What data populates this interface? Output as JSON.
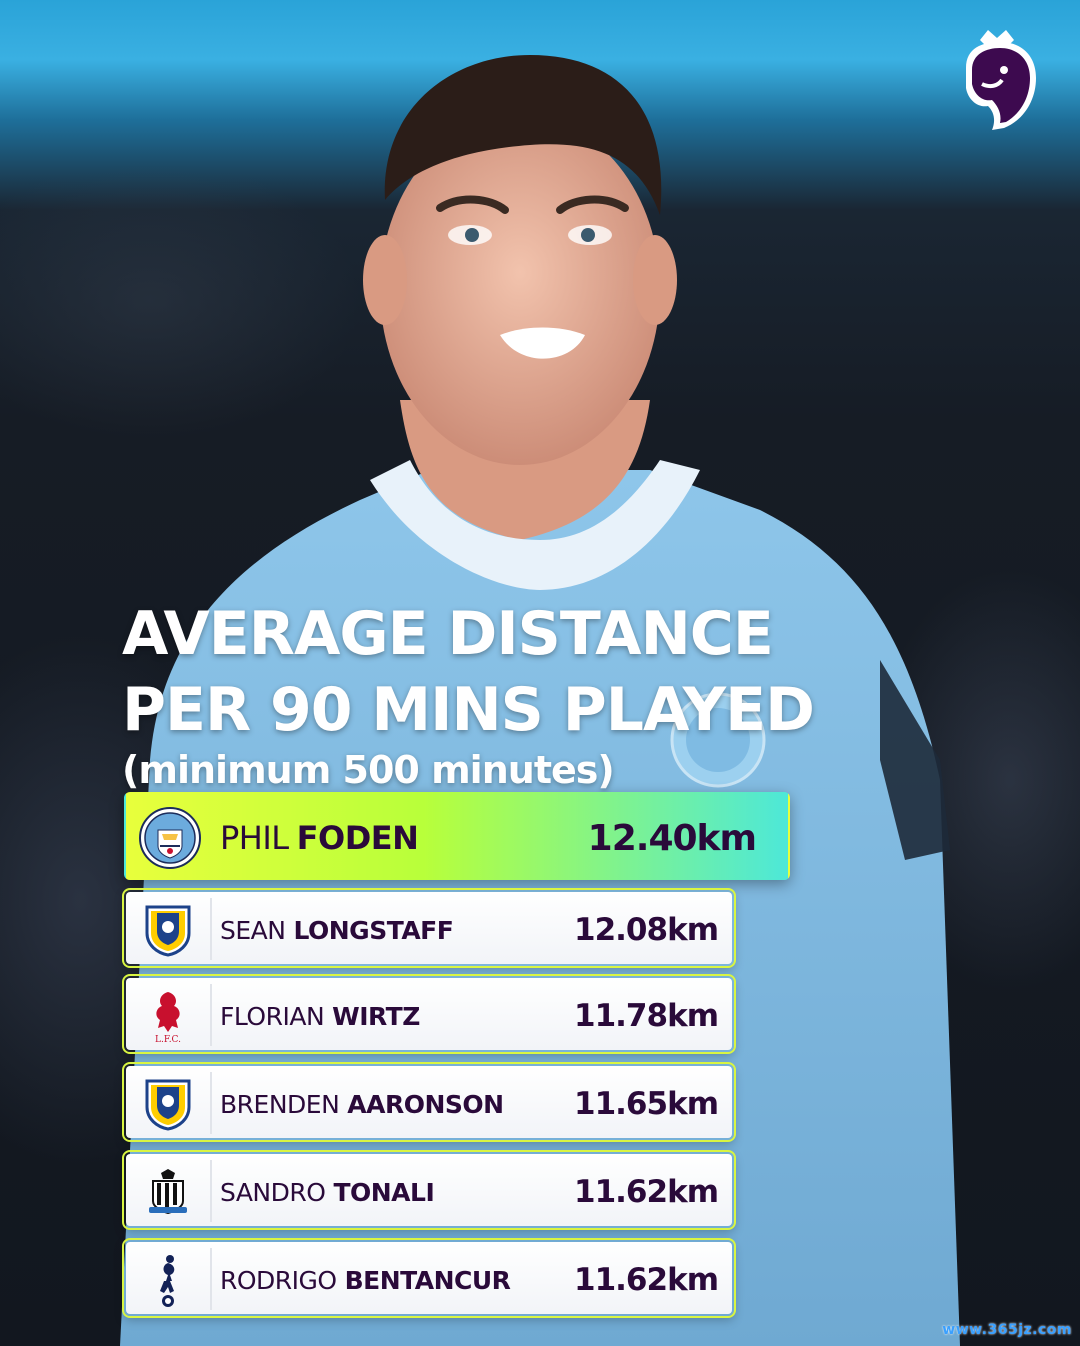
{
  "header": {
    "logo_icon": "premier-league-lion-icon"
  },
  "title": {
    "line1": "AVERAGE DISTANCE",
    "line2": "PER 90 MINS PLAYED",
    "subtitle": "(minimum 500 minutes)"
  },
  "rankings": [
    {
      "first": "PHIL",
      "last": "FODEN",
      "value": "12.40km",
      "club_icon": "manchester-city-crest-icon"
    },
    {
      "first": "SEAN",
      "last": "LONGSTAFF",
      "value": "12.08km",
      "club_icon": "leeds-united-crest-icon"
    },
    {
      "first": "FLORIAN",
      "last": "WIRTZ",
      "value": "11.78km",
      "club_icon": "liverpool-crest-icon"
    },
    {
      "first": "BRENDEN",
      "last": "AARONSON",
      "value": "11.65km",
      "club_icon": "leeds-united-crest-icon"
    },
    {
      "first": "SANDRO",
      "last": "TONALI",
      "value": "11.62km",
      "club_icon": "newcastle-crest-icon"
    },
    {
      "first": "RODRIGO",
      "last": "BENTANCUR",
      "value": "11.62km",
      "club_icon": "tottenham-crest-icon"
    }
  ],
  "colors": {
    "accent_lime": "#e8ff3c",
    "accent_cyan": "#4de8d8",
    "text_purple": "#2a0a3a"
  },
  "watermark": "www.365jz.com"
}
